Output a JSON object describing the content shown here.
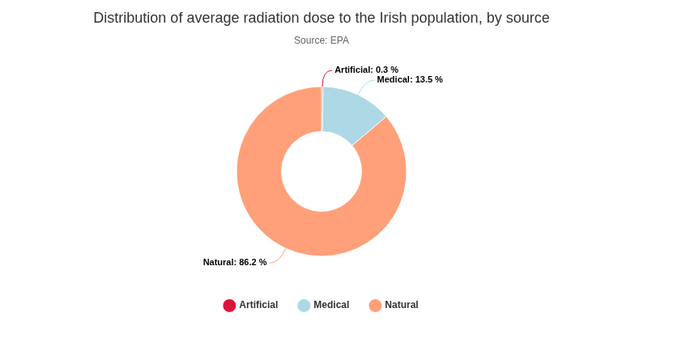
{
  "chart_data": {
    "type": "doughnut",
    "title": "Distribution of average radiation dose to the Irish population, by source",
    "subtitle": "Source: EPA",
    "categories": [
      "Artificial",
      "Medical",
      "Natural"
    ],
    "values": [
      0.3,
      13.5,
      86.2
    ],
    "value_labels": [
      "Artificial: 0.3 %",
      "Medical: 13.5 %",
      "Natural: 86.2 %"
    ],
    "colors": [
      "#dc143c",
      "#add8e6",
      "#ffa07a"
    ],
    "legend": "bottom",
    "data_labels": true
  }
}
